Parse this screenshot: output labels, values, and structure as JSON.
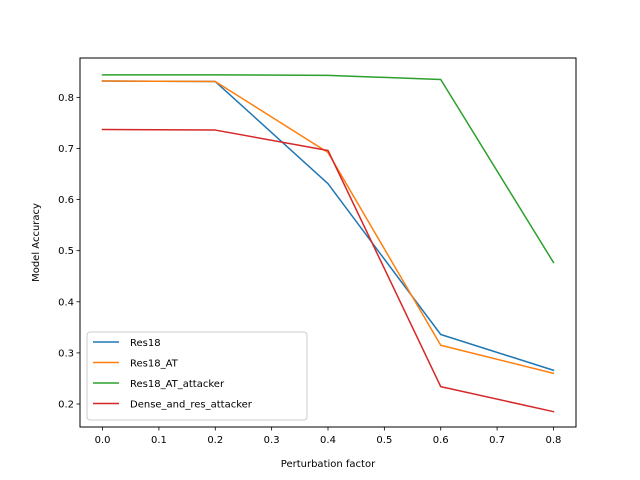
{
  "chart_data": {
    "type": "line",
    "title": "",
    "xlabel": "Perturbation factor",
    "ylabel": "Model Accuracy",
    "x": [
      0.0,
      0.2,
      0.4,
      0.6,
      0.8
    ],
    "xlim": [
      -0.04,
      0.84
    ],
    "ylim": [
      0.155,
      0.877
    ],
    "xticks": [
      "0.0",
      "0.1",
      "0.2",
      "0.3",
      "0.4",
      "0.5",
      "0.6",
      "0.7",
      "0.8"
    ],
    "yticks": [
      "0.2",
      "0.3",
      "0.4",
      "0.5",
      "0.6",
      "0.7",
      "0.8"
    ],
    "grid": false,
    "legend_position": "lower-left",
    "series": [
      {
        "name": "Res18",
        "color": "#1f77b4",
        "values": [
          0.832,
          0.831,
          0.631,
          0.336,
          0.266
        ]
      },
      {
        "name": "Res18_AT",
        "color": "#ff7f0e",
        "values": [
          0.832,
          0.831,
          0.692,
          0.315,
          0.26
        ]
      },
      {
        "name": "Res18_AT_attacker",
        "color": "#2ca02c",
        "values": [
          0.844,
          0.844,
          0.843,
          0.835,
          0.477
        ]
      },
      {
        "name": "Dense_and_res_attacker",
        "color": "#d62728",
        "values": [
          0.737,
          0.736,
          0.696,
          0.234,
          0.185
        ]
      }
    ]
  }
}
